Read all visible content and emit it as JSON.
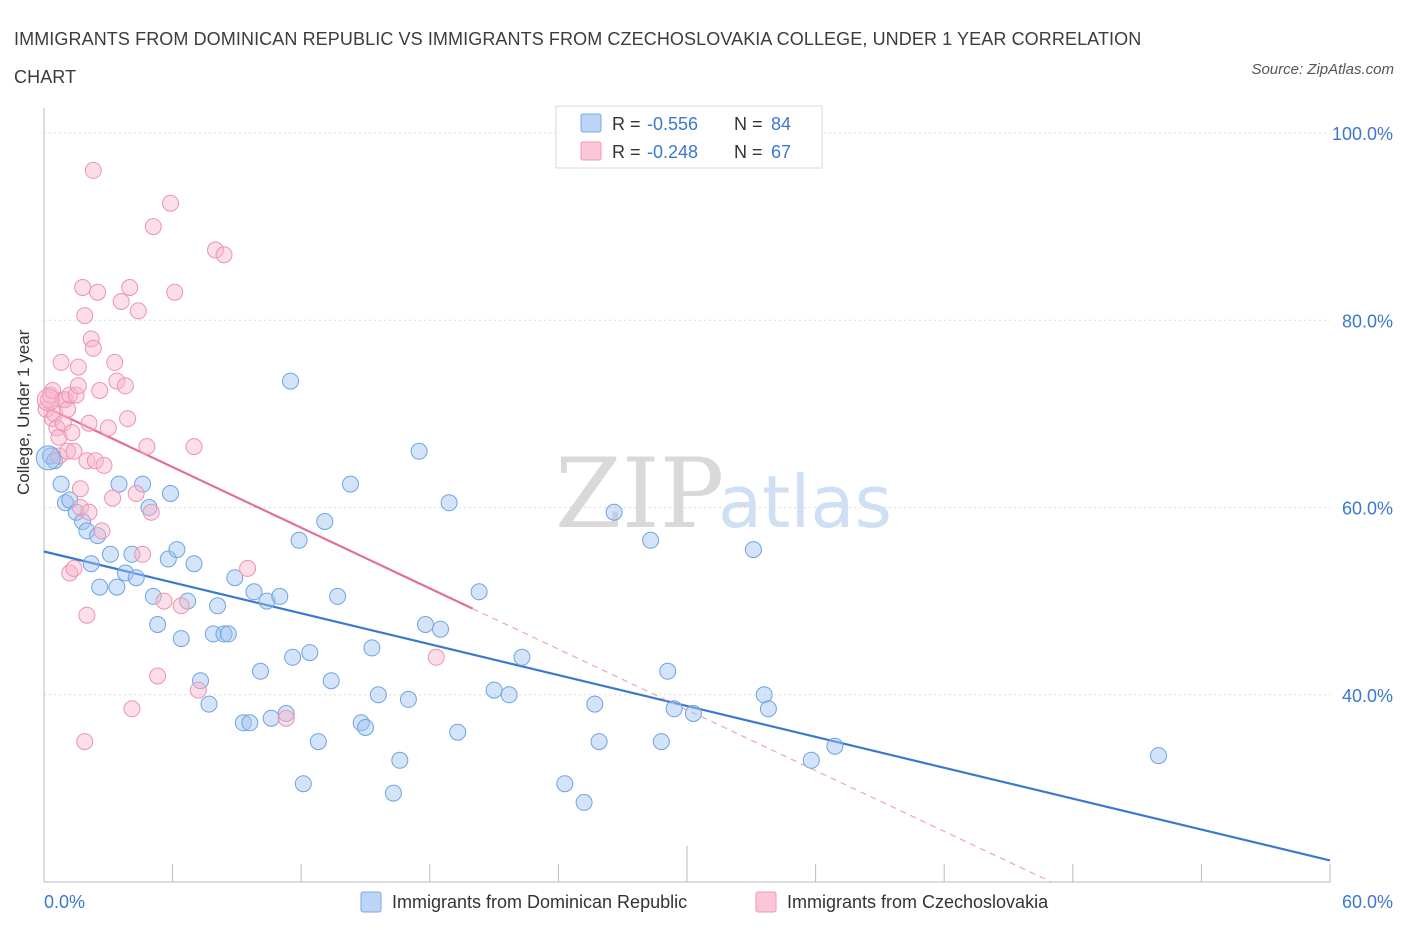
{
  "title": "IMMIGRANTS FROM DOMINICAN REPUBLIC VS IMMIGRANTS FROM CZECHOSLOVAKIA COLLEGE, UNDER 1 YEAR CORRELATION CHART",
  "source": "Source: ZipAtlas.com",
  "watermark": {
    "zip": "ZIP",
    "atlas": "atlas"
  },
  "colors": {
    "blue": "#5b9be0",
    "blue_line": "#3b78d0",
    "pink": "#f29ab4",
    "pink_line": "#e0709a",
    "tick_label": "#3b78d0"
  },
  "legend": {
    "rows": [
      {
        "r_label": "R =",
        "r_value": "-0.556",
        "n_label": "N =",
        "n_value": "84"
      },
      {
        "r_label": "R =",
        "r_value": "-0.248",
        "n_label": "N =",
        "n_value": "67"
      }
    ]
  },
  "chart_data": {
    "type": "scatter",
    "title": "IMMIGRANTS FROM DOMINICAN REPUBLIC VS IMMIGRANTS FROM CZECHOSLOVAKIA COLLEGE, UNDER 1 YEAR CORRELATION CHART",
    "xlabel": "",
    "ylabel": "College, Under 1 year",
    "xlim": [
      0,
      60
    ],
    "ylim": [
      20,
      100
    ],
    "x_tick_labels": [
      "0.0%",
      "60.0%"
    ],
    "y_ticks": [
      40,
      60,
      80,
      100
    ],
    "y_tick_labels": [
      "40.0%",
      "60.0%",
      "80.0%",
      "100.0%"
    ],
    "grid": true,
    "legend_position": "top-center",
    "series": [
      {
        "name": "Immigrants from Dominican Republic",
        "color": "#5b9be0",
        "trend": {
          "x": [
            0,
            60
          ],
          "y": [
            55.3,
            22.3
          ]
        },
        "points": [
          [
            0.3,
            65.5
          ],
          [
            0.5,
            65
          ],
          [
            0.8,
            62.5
          ],
          [
            1,
            60.5
          ],
          [
            1.2,
            60.8
          ],
          [
            1.5,
            59.5
          ],
          [
            1.8,
            58.5
          ],
          [
            2,
            57.5
          ],
          [
            2.5,
            57
          ],
          [
            2.2,
            54
          ],
          [
            2.6,
            51.5
          ],
          [
            3.1,
            55
          ],
          [
            3.4,
            51.5
          ],
          [
            3.5,
            62.5
          ],
          [
            3.8,
            53
          ],
          [
            4.1,
            55
          ],
          [
            4.3,
            52.5
          ],
          [
            4.6,
            62.5
          ],
          [
            4.9,
            60
          ],
          [
            5.1,
            50.5
          ],
          [
            5.3,
            47.5
          ],
          [
            5.9,
            61.5
          ],
          [
            5.8,
            54.5
          ],
          [
            6.2,
            55.5
          ],
          [
            6.4,
            46
          ],
          [
            6.7,
            50
          ],
          [
            7.0,
            54
          ],
          [
            7.3,
            41.5
          ],
          [
            7.7,
            39
          ],
          [
            7.9,
            46.5
          ],
          [
            8.1,
            49.5
          ],
          [
            8.4,
            46.5
          ],
          [
            8.6,
            46.5
          ],
          [
            8.9,
            52.5
          ],
          [
            9.3,
            37
          ],
          [
            9.6,
            37
          ],
          [
            9.8,
            51
          ],
          [
            10.1,
            42.5
          ],
          [
            10.4,
            50
          ],
          [
            10.6,
            37.5
          ],
          [
            11.0,
            50.5
          ],
          [
            11.3,
            38
          ],
          [
            11.6,
            44
          ],
          [
            11.9,
            56.5
          ],
          [
            11.5,
            73.5
          ],
          [
            12.1,
            30.5
          ],
          [
            12.4,
            44.5
          ],
          [
            12.8,
            35
          ],
          [
            13.1,
            58.5
          ],
          [
            13.4,
            41.5
          ],
          [
            13.7,
            50.5
          ],
          [
            14.3,
            62.5
          ],
          [
            14.8,
            37
          ],
          [
            15,
            36.5
          ],
          [
            15.3,
            45
          ],
          [
            15.6,
            40
          ],
          [
            16.6,
            33
          ],
          [
            16.3,
            29.5
          ],
          [
            17,
            39.5
          ],
          [
            17.5,
            66
          ],
          [
            17.8,
            47.5
          ],
          [
            18.5,
            47
          ],
          [
            18.9,
            60.5
          ],
          [
            19.3,
            36
          ],
          [
            20.3,
            51
          ],
          [
            21.0,
            40.5
          ],
          [
            21.7,
            40
          ],
          [
            22.3,
            44
          ],
          [
            24.3,
            30.5
          ],
          [
            25.2,
            28.5
          ],
          [
            25.7,
            39
          ],
          [
            25.9,
            35
          ],
          [
            26.6,
            59.5
          ],
          [
            28.3,
            56.5
          ],
          [
            28.8,
            35
          ],
          [
            29.1,
            42.5
          ],
          [
            29.4,
            38.5
          ],
          [
            30.3,
            38
          ],
          [
            33.1,
            55.5
          ],
          [
            33.6,
            40
          ],
          [
            33.8,
            38.5
          ],
          [
            35.8,
            33
          ],
          [
            36.9,
            34.5
          ],
          [
            52,
            33.5
          ]
        ]
      },
      {
        "name": "Immigrants from Czechoslovakia",
        "color": "#f29ab4",
        "trend": {
          "x": [
            0,
            20
          ],
          "y": [
            70.8,
            49.2
          ]
        },
        "trend_dashed": {
          "x": [
            20,
            47
          ],
          "y": [
            49.2,
            20
          ]
        },
        "points": [
          [
            0.1,
            70.5
          ],
          [
            0.2,
            71.5
          ],
          [
            0.3,
            72
          ],
          [
            0.4,
            69.5
          ],
          [
            0.4,
            72.5
          ],
          [
            0.5,
            70
          ],
          [
            0.6,
            68.5
          ],
          [
            0.7,
            67.5
          ],
          [
            0.7,
            65.5
          ],
          [
            0.8,
            75.5
          ],
          [
            0.9,
            71.5
          ],
          [
            0.9,
            69
          ],
          [
            1,
            71.5
          ],
          [
            1.1,
            70.5
          ],
          [
            1.1,
            66
          ],
          [
            1.2,
            72
          ],
          [
            1.2,
            53
          ],
          [
            1.3,
            68
          ],
          [
            1.4,
            66
          ],
          [
            1.4,
            53.5
          ],
          [
            1.5,
            72
          ],
          [
            1.6,
            75
          ],
          [
            1.6,
            73
          ],
          [
            1.7,
            62
          ],
          [
            1.7,
            60
          ],
          [
            1.8,
            83.5
          ],
          [
            1.9,
            80.5
          ],
          [
            1.9,
            35
          ],
          [
            2,
            65
          ],
          [
            2,
            48.5
          ],
          [
            2.1,
            69
          ],
          [
            2.1,
            59.5
          ],
          [
            2.2,
            78
          ],
          [
            2.3,
            77
          ],
          [
            2.3,
            96
          ],
          [
            2.4,
            65
          ],
          [
            2.5,
            83
          ],
          [
            2.6,
            72.5
          ],
          [
            2.7,
            57.5
          ],
          [
            2.8,
            64.5
          ],
          [
            3.0,
            68.5
          ],
          [
            3.2,
            61
          ],
          [
            3.3,
            75.5
          ],
          [
            3.4,
            73.5
          ],
          [
            3.6,
            82
          ],
          [
            3.8,
            73
          ],
          [
            3.9,
            69.5
          ],
          [
            4.0,
            83.5
          ],
          [
            4.1,
            38.5
          ],
          [
            4.3,
            61.5
          ],
          [
            4.4,
            81
          ],
          [
            4.6,
            55
          ],
          [
            4.8,
            66.5
          ],
          [
            5.0,
            59.5
          ],
          [
            5.1,
            90
          ],
          [
            5.3,
            42
          ],
          [
            5.6,
            50
          ],
          [
            5.9,
            92.5
          ],
          [
            6.1,
            83
          ],
          [
            6.4,
            49.5
          ],
          [
            7.0,
            66.5
          ],
          [
            7.2,
            40.5
          ],
          [
            8.0,
            87.5
          ],
          [
            8.4,
            87
          ],
          [
            9.5,
            53.5
          ],
          [
            11.3,
            37.5
          ],
          [
            18.3,
            44
          ]
        ]
      }
    ]
  },
  "legend_bottom": {
    "items": [
      {
        "label": "Immigrants from Dominican Republic"
      },
      {
        "label": "Immigrants from Czechoslovakia"
      }
    ]
  }
}
